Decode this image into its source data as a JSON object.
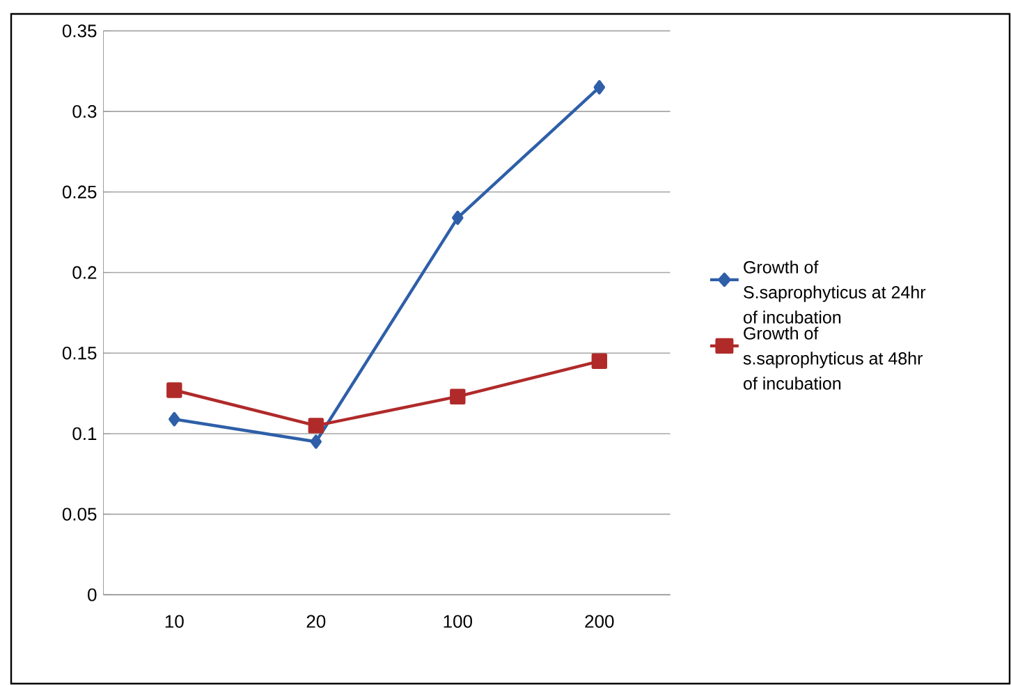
{
  "chart_data": {
    "type": "line",
    "categories": [
      "10",
      "20",
      "100",
      "200"
    ],
    "series": [
      {
        "name": "Growth of S.saprophyticus at 24hr of incubation",
        "color": "#2e5fa8",
        "marker": "diamond",
        "values": [
          0.109,
          0.095,
          0.234,
          0.315
        ]
      },
      {
        "name": "Growth of s.saprophyticus at 48hr of incubation",
        "color": "#b02a2a",
        "marker": "square",
        "values": [
          0.127,
          0.105,
          0.123,
          0.145
        ]
      }
    ],
    "ylim": [
      0,
      0.35
    ],
    "yticks": [
      0,
      0.05,
      0.1,
      0.15,
      0.2,
      0.25,
      0.3,
      0.35
    ],
    "grid": "y",
    "legend": "right",
    "line_style": "solid"
  }
}
